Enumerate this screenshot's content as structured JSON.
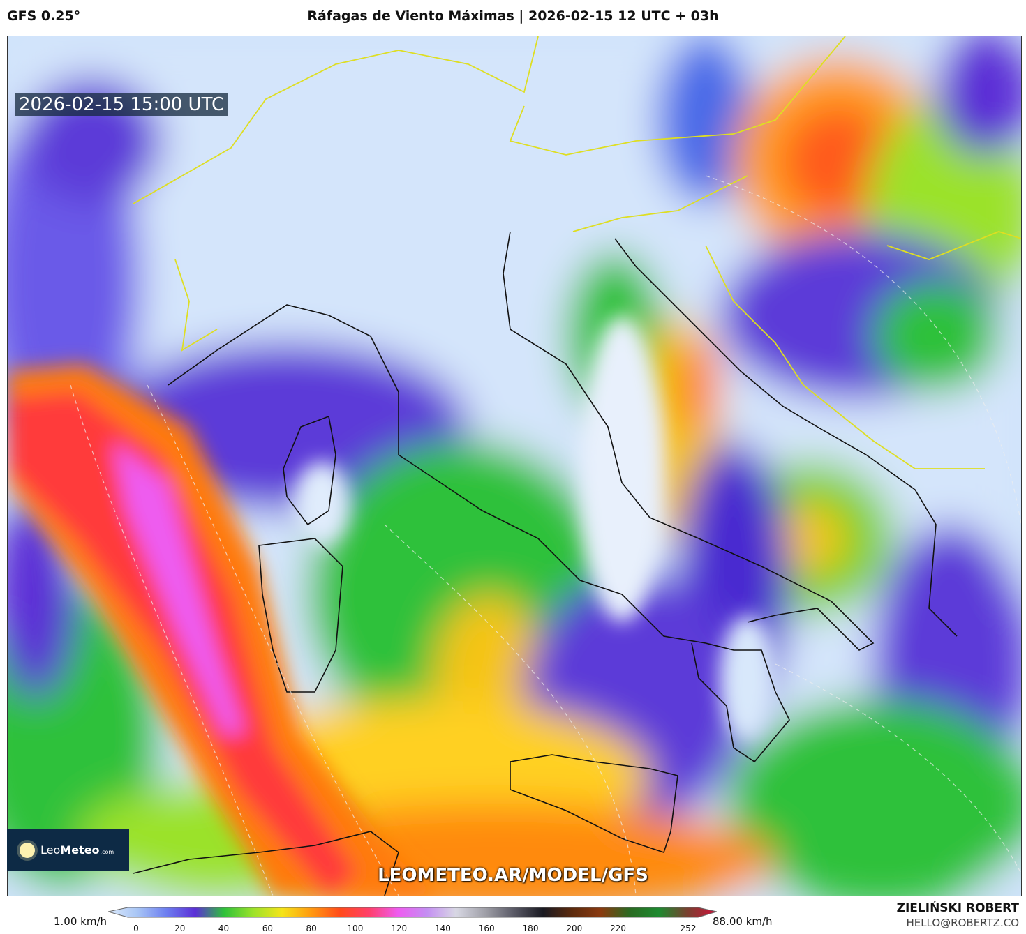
{
  "header": {
    "model": "GFS 0.25°",
    "title": "Ráfagas de Viento Máximas | 2026-02-15 12 UTC + 03h"
  },
  "map": {
    "valid_time": "2026-02-15 15:00 UTC",
    "watermark_url": "LEOMETEO.AR/MODEL/GFS",
    "logo_text": {
      "light": "Leo",
      "bold": "Meteo",
      "suffix": ".com"
    },
    "variable": "wind gusts",
    "region": "Italy / central Mediterranean"
  },
  "colorbar": {
    "min_label": "1.00 km/h",
    "max_label": "88.00 km/h",
    "ticks": [
      "0",
      "20",
      "40",
      "60",
      "80",
      "100",
      "120",
      "140",
      "160",
      "180",
      "200",
      "220",
      "252"
    ],
    "colors": [
      "#dbe9fb",
      "#a9c6f5",
      "#6d7ff0",
      "#5b2fd6",
      "#2fc13a",
      "#9be22a",
      "#f5e419",
      "#ff9a10",
      "#ff4a1a",
      "#ff3f6a",
      "#ee5cf0",
      "#c48ef2",
      "#d8d8e4",
      "#a0a0a8",
      "#5a5a66",
      "#1a1a22",
      "#5b2a0e",
      "#8a3a10",
      "#2a6a22",
      "#1e8a30",
      "#7a4030",
      "#d0103a"
    ]
  },
  "footer": {
    "author": "ZIELIŃSKI ROBERT",
    "email": "HELLO@ROBERTZ.CO"
  }
}
